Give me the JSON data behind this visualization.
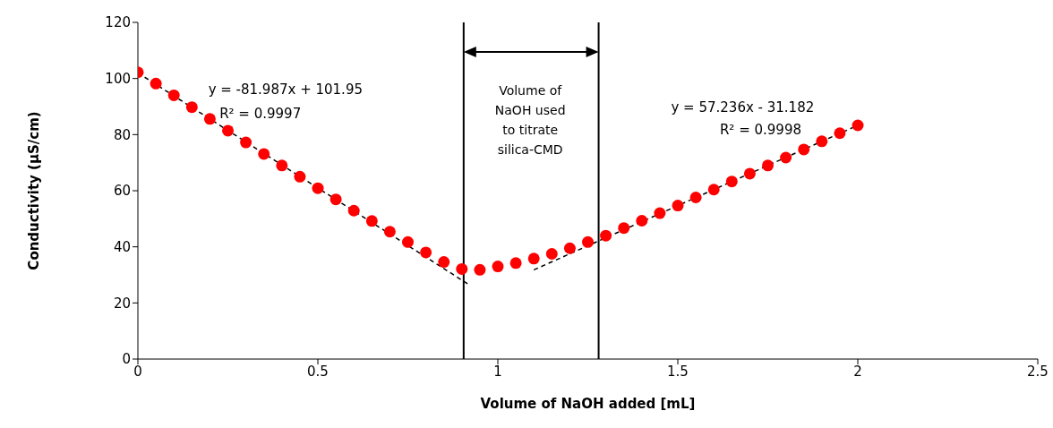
{
  "chart_data": {
    "type": "scatter",
    "xlabel": "Volume of NaOH added [mL]",
    "ylabel": "Conductivity (µS/cm)",
    "xlim": [
      0,
      2.5
    ],
    "xticks": [
      0,
      0.5,
      1,
      1.5,
      2,
      2.5
    ],
    "ylim": [
      0,
      120
    ],
    "yticks": [
      0,
      20,
      40,
      60,
      80,
      100,
      120
    ],
    "grid": false,
    "marker": "circle",
    "series": [
      {
        "color": "#ff0000",
        "x": [
          0,
          0.05,
          0.1,
          0.15,
          0.2,
          0.25,
          0.3,
          0.35,
          0.4,
          0.45,
          0.5,
          0.55,
          0.6,
          0.65,
          0.7,
          0.75,
          0.8,
          0.85,
          0.9,
          0.95,
          1.0,
          1.05,
          1.1,
          1.15,
          1.2,
          1.25,
          1.3,
          1.35,
          1.4,
          1.45,
          1.5,
          1.55,
          1.6,
          1.65,
          1.7,
          1.75,
          1.8,
          1.85,
          1.9,
          1.95,
          2.0
        ],
        "values": [
          102.2,
          98.2,
          94,
          89.8,
          85.6,
          81.4,
          77.2,
          73.1,
          69,
          65,
          60.9,
          56.9,
          52.9,
          49.2,
          45.4,
          41.7,
          38,
          34.6,
          32.1,
          31.8,
          33,
          34.2,
          35.8,
          37.5,
          39.5,
          41.7,
          44,
          46.7,
          49.3,
          52,
          54.7,
          57.6,
          60.4,
          63.3,
          66.1,
          69,
          71.8,
          74.7,
          77.6,
          80.5,
          83.3
        ]
      },
      {
        "type": "line",
        "color": "#000000",
        "line_style": "dashed",
        "marker": "none",
        "x": [
          0,
          0.92
        ],
        "values": [
          102,
          26.5
        ]
      },
      {
        "type": "line",
        "color": "#000000",
        "line_style": "dashed",
        "marker": "none",
        "x": [
          1.1,
          2.0
        ],
        "values": [
          31.8,
          83.3
        ]
      }
    ],
    "ref_lines": [
      {
        "axis": "x",
        "value": 0.905,
        "color": "#000000"
      },
      {
        "axis": "x",
        "value": 1.28,
        "color": "#000000"
      }
    ],
    "annotations": [
      "y = -81.987x + 101.95",
      "R² = 0.9997",
      "y = 57.236x - 31.182",
      "R² = 0.9998",
      "Volume of NaOH used to titrate silica-CMD"
    ]
  }
}
